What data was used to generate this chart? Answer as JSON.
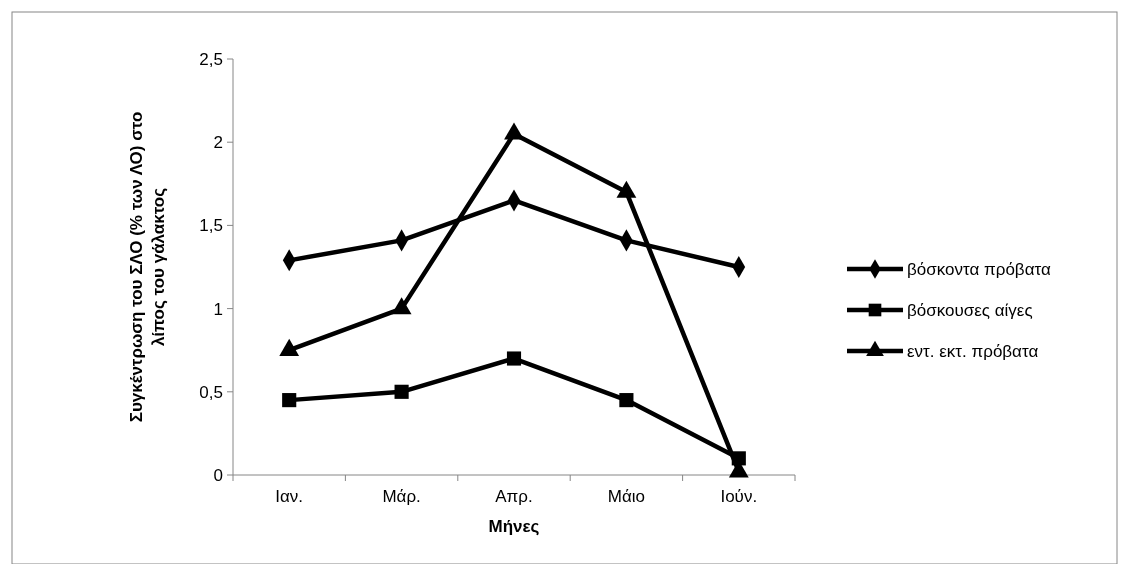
{
  "chart_data": {
    "type": "line",
    "xlabel": "Μήνες",
    "ylabel": "Συγκέντρωση του ΣΛΟ (% των ΛΟ) στο λίπος του γάλακτος",
    "categories": [
      "Ιαν.",
      "Μάρ.",
      "Απρ.",
      "Μάιο",
      "Ιούν."
    ],
    "series": [
      {
        "name": "βόσκοντα πρόβατα",
        "color": "#000000",
        "marker": "diamond",
        "values": [
          1.29,
          1.41,
          1.65,
          1.41,
          1.25
        ]
      },
      {
        "name": "βόσκουσες αίγες",
        "color": "#000000",
        "marker": "square",
        "values": [
          0.45,
          0.5,
          0.7,
          0.45,
          0.1
        ]
      },
      {
        "name": "εντ. εκτ. πρόβατα",
        "color": "#000000",
        "marker": "triangle",
        "values": [
          0.75,
          1.0,
          2.05,
          1.7,
          0.02
        ]
      }
    ],
    "ylim": [
      0,
      2.5
    ],
    "yticks": [
      {
        "value": 0,
        "label": "0"
      },
      {
        "value": 0.5,
        "label": "0,5"
      },
      {
        "value": 1,
        "label": "1"
      },
      {
        "value": 1.5,
        "label": "1,5"
      },
      {
        "value": 2,
        "label": "2"
      },
      {
        "value": 2.5,
        "label": "2,5"
      }
    ],
    "grid": false,
    "legend": "right",
    "line_style": "solid"
  }
}
